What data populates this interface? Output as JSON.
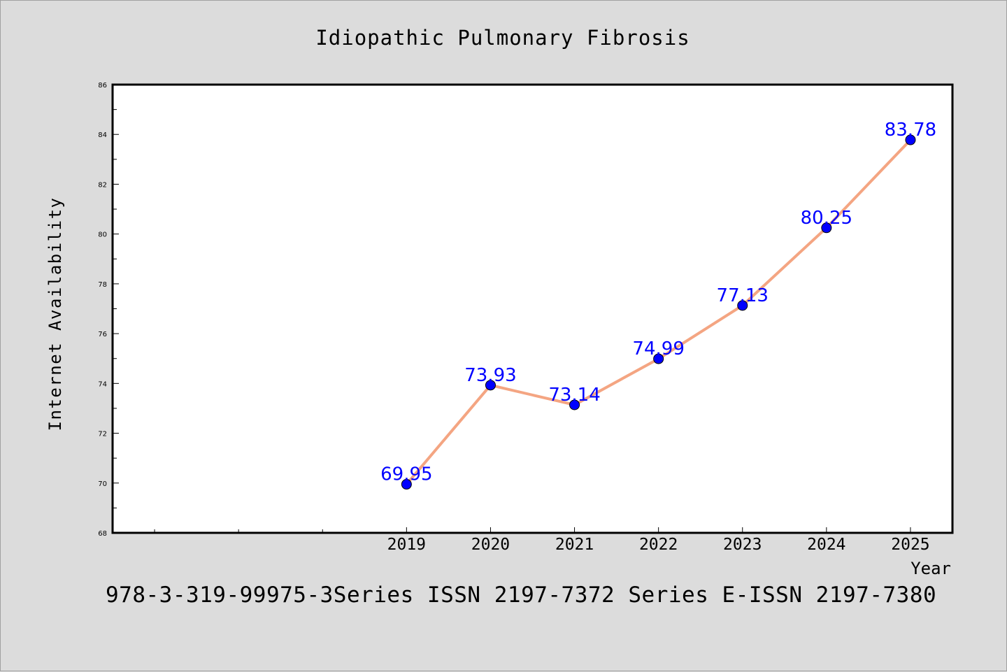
{
  "chart_data": {
    "type": "line",
    "title": "Idiopathic Pulmonary Fibrosis",
    "xlabel": "Year",
    "ylabel": "Internet Availability",
    "x": [
      2019,
      2020,
      2021,
      2022,
      2023,
      2024,
      2025
    ],
    "x_tick_labels": [
      "2019",
      "2020",
      "2021",
      "2022",
      "2023",
      "2024",
      "2025"
    ],
    "xlim": [
      2015.5,
      2025.5
    ],
    "ylim": [
      68,
      86
    ],
    "y_ticks": [
      68,
      70,
      72,
      74,
      76,
      78,
      80,
      82,
      84,
      86
    ],
    "series": [
      {
        "values": [
          69.95,
          73.93,
          73.14,
          74.99,
          77.13,
          80.25,
          83.78
        ]
      }
    ],
    "data_labels": [
      "69.95",
      "73.93",
      "73.14",
      "74.99",
      "77.13",
      "80.25",
      "83.78"
    ],
    "line_color": "#f4a582",
    "marker_color": "#0000ff",
    "label_color": "#0000ff",
    "grid": false,
    "legend": "none"
  },
  "footer": {
    "text": "978-3-319-99975-3Series ISSN 2197-7372 Series E-ISSN 2197-7380"
  }
}
